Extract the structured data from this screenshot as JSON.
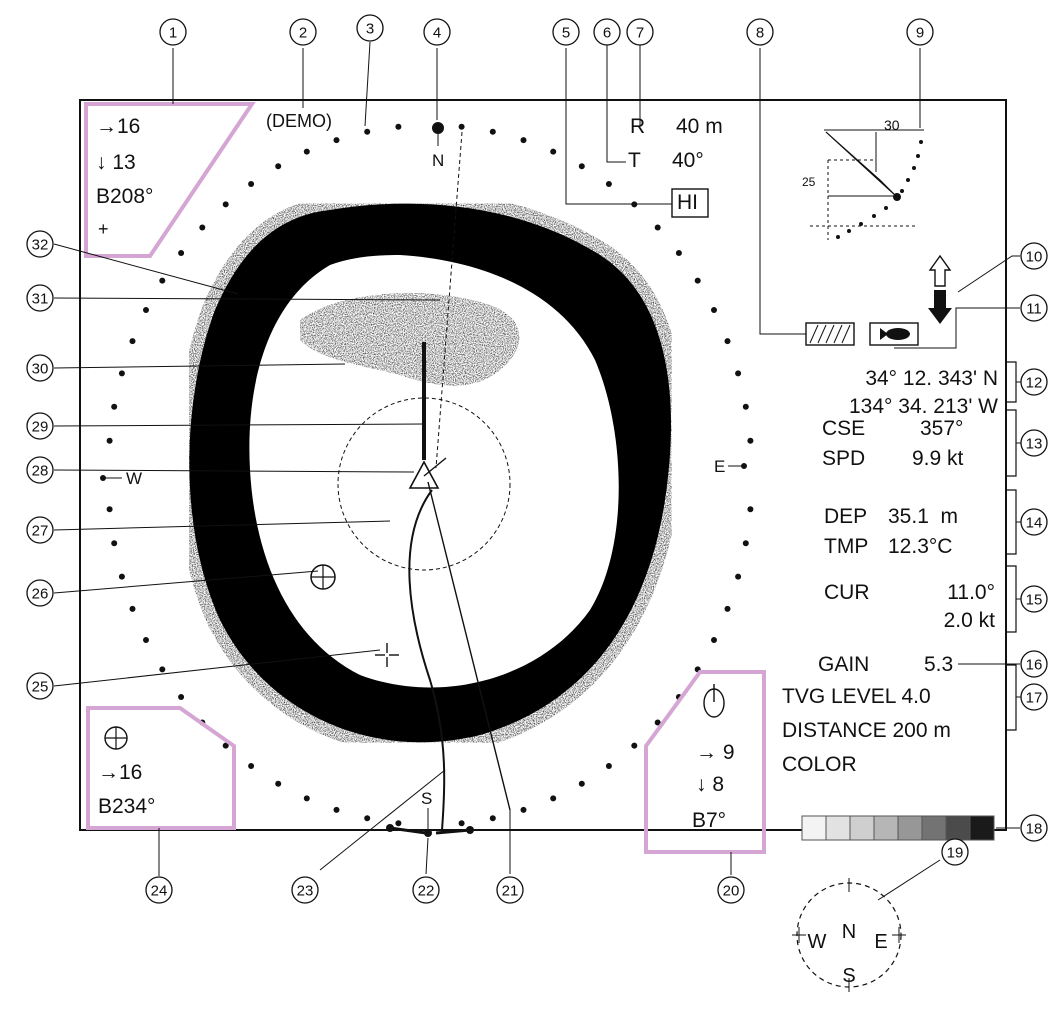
{
  "callouts": [
    "1",
    "2",
    "3",
    "4",
    "5",
    "6",
    "7",
    "8",
    "9",
    "10",
    "11",
    "12",
    "13",
    "14",
    "15",
    "16",
    "17",
    "18",
    "19",
    "20",
    "21",
    "22",
    "23",
    "24",
    "25",
    "26",
    "27",
    "28",
    "29",
    "30",
    "31",
    "32"
  ],
  "demo_label": "(DEMO)",
  "compass_marks": {
    "north": "N",
    "south": "S",
    "east": "E",
    "west": "W"
  },
  "range_info": {
    "r_label": "R",
    "r_value": "40 m",
    "t_label": "T",
    "t_value": "40°",
    "hi_label": "HI"
  },
  "box_1": {
    "line1": "→16",
    "line2": "↓ 13",
    "line3": "B208°",
    "line4": "+"
  },
  "box_24": {
    "line1": "→16",
    "line2": "B234°"
  },
  "box_20": {
    "line1": "→ 9",
    "line2": "↓ 8",
    "line3": "B7°"
  },
  "tilt_inset": {
    "label_30": "30",
    "label_25": "25"
  },
  "position": {
    "lat": "34° 12. 343' N",
    "lon": "134° 34. 213' W"
  },
  "course": {
    "cse_label": "CSE",
    "cse_value": "357°",
    "spd_label": "SPD",
    "spd_value": "9.9 kt"
  },
  "depth": {
    "dep_label": "DEP",
    "dep_value": "35.1  m",
    "tmp_label": "TMP",
    "tmp_value": "12.3°C"
  },
  "current": {
    "cur_label": "CUR",
    "cur_dir": "11.0°",
    "cur_speed": "2.0 kt"
  },
  "gain": {
    "label": "GAIN",
    "value": "5.3"
  },
  "tvg": {
    "tvg_line": "TVG LEVEL 4.0",
    "distance_line": "DISTANCE 200 m",
    "color_line": "COLOR"
  },
  "mini_compass": {
    "north": "N",
    "south": "S",
    "east": "E",
    "west": "W"
  },
  "colors": {
    "frame": "#111111",
    "callout_box": "#d5a6d3",
    "echo": "#000000"
  }
}
